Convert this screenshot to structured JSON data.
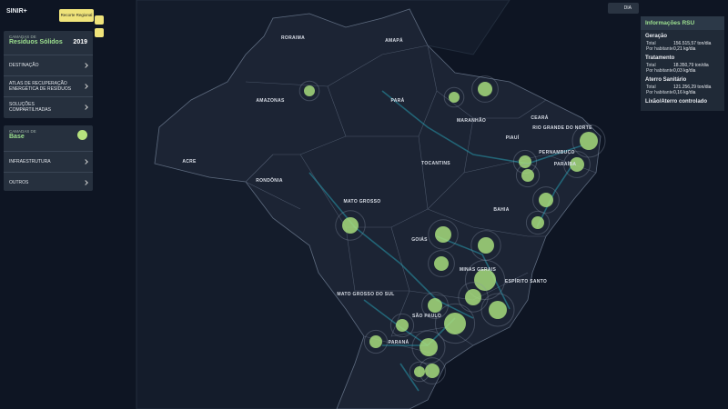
{
  "header": {
    "logo": "SINIR+",
    "region_button": "Recorte Regional",
    "day_button": "DIA"
  },
  "layers_panel": {
    "label": "CAMADAS DE",
    "title": "Resíduos Sólidos",
    "year": "2019",
    "items": [
      "DESTINAÇÃO",
      "ATLAS DE RECUPERAÇÃO ENERGÉTICA DE RESÍDUOS",
      "SOLUÇÕES COMPARTILHADAS"
    ]
  },
  "base_panel": {
    "label": "CAMADAS DE",
    "title": "Base",
    "items": [
      "INFRAESTRUTURA",
      "OUTROS"
    ]
  },
  "info_panel": {
    "title": "Informações RSU",
    "sections": [
      {
        "name": "Geração",
        "rows": [
          {
            "label": "Total",
            "value": "156.515,57 ton/dia"
          },
          {
            "label": "Por habitante",
            "value": "0,21 kg/dia"
          }
        ]
      },
      {
        "name": "Tratamento",
        "rows": [
          {
            "label": "Total",
            "value": "18.350,79 ton/dia"
          },
          {
            "label": "Por habitante",
            "value": "0,03 kg/dia"
          }
        ]
      },
      {
        "name": "Aterro Sanitário",
        "rows": [
          {
            "label": "Total",
            "value": "121.256,29 ton/dia"
          },
          {
            "label": "Por habitante",
            "value": "0,16 kg/dia"
          }
        ]
      },
      {
        "name": "Lixão/Aterro controlado"
      }
    ]
  },
  "map": {
    "labels": [
      "RORAIMA",
      "AMAPÁ",
      "AMAZONAS",
      "PARÁ",
      "MARANHÃO",
      "CEARÁ",
      "RIO GRANDE DO NORTE",
      "PARAÍBA",
      "PIAUÍ",
      "PERNAMBUCO",
      "ACRE",
      "RONDÔNIA",
      "TOCANTINS",
      "MATO GROSSO",
      "BAHIA",
      "GOIÁS",
      "MINAS GERAIS",
      "ESPÍRITO SANTO",
      "MATO GROSSO DO SUL",
      "SÃO PAULO",
      "PARANÁ"
    ]
  }
}
